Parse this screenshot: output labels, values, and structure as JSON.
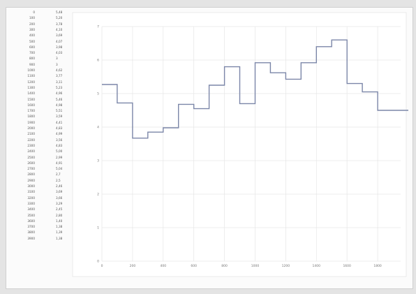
{
  "table": {
    "rows": [
      {
        "x": "0",
        "y": "5,48"
      },
      {
        "x": "100",
        "y": "5,20"
      },
      {
        "x": "200",
        "y": "3,78"
      },
      {
        "x": "300",
        "y": "4,10"
      },
      {
        "x": "400",
        "y": "3,69"
      },
      {
        "x": "500",
        "y": "4,07"
      },
      {
        "x": "600",
        "y": "3,98"
      },
      {
        "x": "700",
        "y": "4,03"
      },
      {
        "x": "800",
        "y": "3"
      },
      {
        "x": "900",
        "y": "3"
      },
      {
        "x": "1000",
        "y": "4,62"
      },
      {
        "x": "1100",
        "y": "3,77"
      },
      {
        "x": "1200",
        "y": "3,11"
      },
      {
        "x": "1300",
        "y": "5,23"
      },
      {
        "x": "1400",
        "y": "4,96"
      },
      {
        "x": "1500",
        "y": "5,46"
      },
      {
        "x": "1600",
        "y": "4,98"
      },
      {
        "x": "1700",
        "y": "5,51"
      },
      {
        "x": "1800",
        "y": "3,59"
      },
      {
        "x": "1900",
        "y": "4,41"
      },
      {
        "x": "2000",
        "y": "4,83"
      },
      {
        "x": "2100",
        "y": "4,99"
      },
      {
        "x": "2200",
        "y": "3,56"
      },
      {
        "x": "2300",
        "y": "4,83"
      },
      {
        "x": "2400",
        "y": "5,00"
      },
      {
        "x": "2500",
        "y": "2,99"
      },
      {
        "x": "2600",
        "y": "4,91"
      },
      {
        "x": "2700",
        "y": "5,04"
      },
      {
        "x": "2800",
        "y": "2,7"
      },
      {
        "x": "2900",
        "y": "2,5"
      },
      {
        "x": "3000",
        "y": "2,46"
      },
      {
        "x": "3100",
        "y": "3,69"
      },
      {
        "x": "3200",
        "y": "3,66"
      },
      {
        "x": "3300",
        "y": "3,29"
      },
      {
        "x": "3400",
        "y": "2,45"
      },
      {
        "x": "3500",
        "y": "2,80"
      },
      {
        "x": "3600",
        "y": "1,40"
      },
      {
        "x": "3700",
        "y": "1,38"
      },
      {
        "x": "3800",
        "y": "1,39"
      },
      {
        "x": "3900",
        "y": "1,38"
      }
    ]
  },
  "chart_data": {
    "type": "line",
    "step": true,
    "x": [
      0,
      100,
      200,
      300,
      400,
      500,
      600,
      700,
      800,
      900,
      1000,
      1100,
      1200,
      1300,
      1400,
      1500,
      1600,
      1700,
      1800,
      1900
    ],
    "series": [
      {
        "values": [
          5.27,
          4.72,
          3.67,
          3.85,
          3.98,
          4.68,
          4.55,
          5.25,
          5.8,
          4.7,
          5.92,
          5.62,
          5.43,
          5.92,
          6.4,
          6.6,
          5.3,
          5.05,
          4.5,
          4.5
        ],
        "color": "#7b86a8"
      }
    ],
    "xlim": [
      0,
      1950
    ],
    "ylim": [
      0,
      7
    ],
    "xticks": [
      0,
      200,
      400,
      600,
      800,
      1000,
      1200,
      1400,
      1600,
      1800
    ],
    "yticks": [
      0,
      1,
      2,
      3,
      4,
      5,
      6,
      7
    ],
    "ytick_labels": [
      "0",
      "1",
      "2",
      "3",
      "4",
      "5",
      "6",
      "7"
    ],
    "grid": true,
    "title": "",
    "xlabel": "",
    "ylabel": ""
  }
}
